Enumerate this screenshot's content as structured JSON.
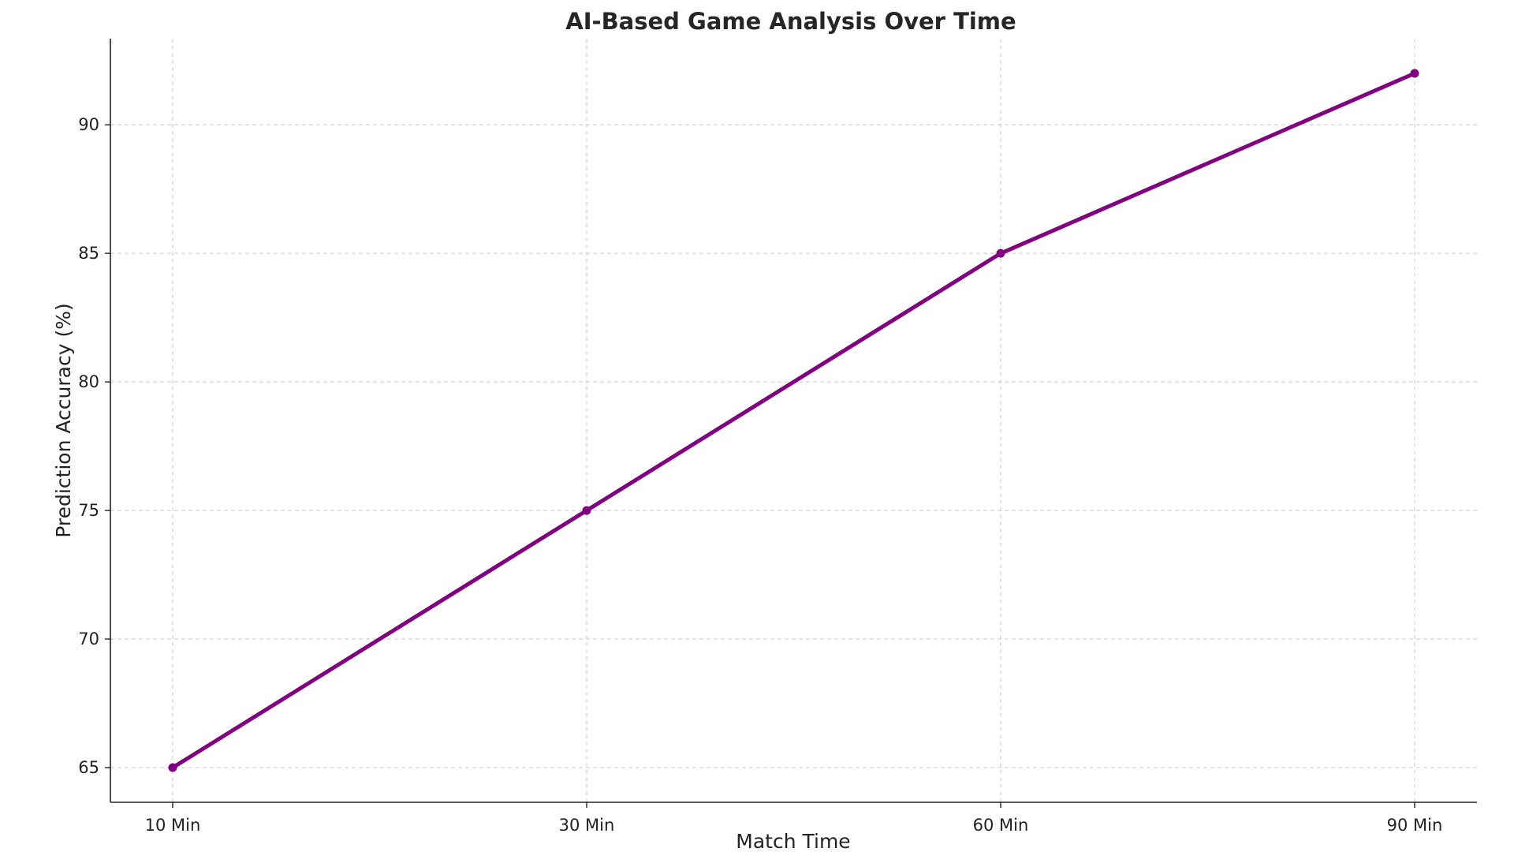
{
  "chart_data": {
    "type": "line",
    "title": "AI-Based Game Analysis Over Time",
    "xlabel": "Match Time",
    "ylabel": "Prediction Accuracy (%)",
    "categories": [
      "10 Min",
      "30 Min",
      "60 Min",
      "90 Min"
    ],
    "series": [
      {
        "values": [
          65,
          75,
          85,
          92
        ],
        "color": "#800080"
      }
    ],
    "yticks": [
      65,
      70,
      75,
      80,
      85,
      90
    ],
    "ylim": [
      63.65,
      93.35
    ],
    "grid": true,
    "legend": "none"
  }
}
